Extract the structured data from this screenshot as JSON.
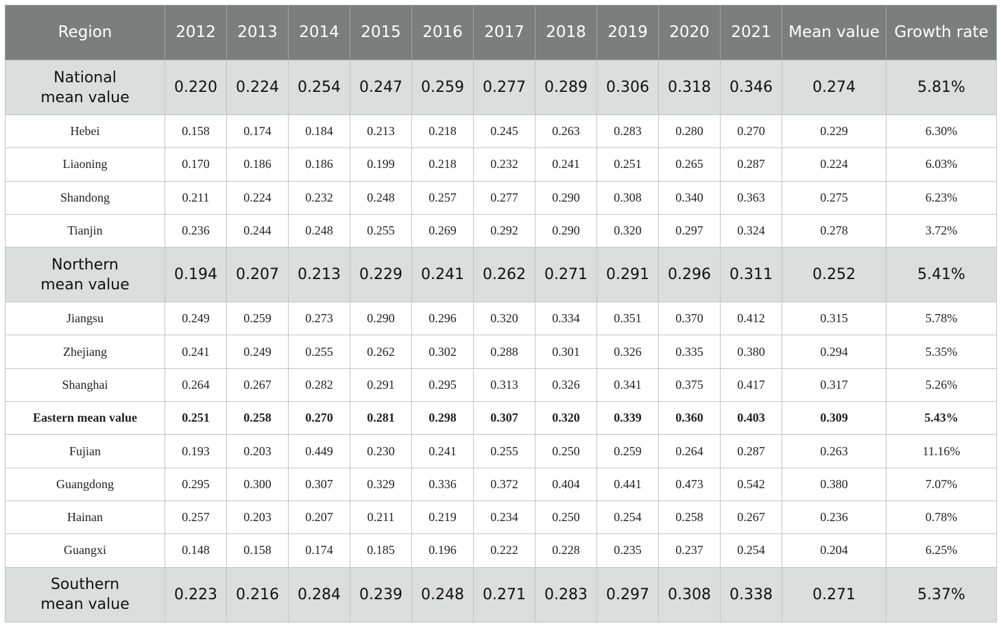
{
  "table": {
    "header": [
      "Region",
      "2012",
      "2013",
      "2014",
      "2015",
      "2016",
      "2017",
      "2018",
      "2019",
      "2020",
      "2021",
      "Mean value",
      "Growth rate"
    ],
    "rows": [
      [
        "National mean value",
        "0.220",
        "0.224",
        "0.254",
        "0.247",
        "0.259",
        "0.277",
        "0.289",
        "0.306",
        "0.318",
        "0.346",
        "0.274",
        "5.81%"
      ],
      [
        "Hebei",
        "0.158",
        "0.174",
        "0.184",
        "0.213",
        "0.218",
        "0.245",
        "0.263",
        "0.283",
        "0.280",
        "0.270",
        "0.229",
        "6.30%"
      ],
      [
        "Liaoning",
        "0.170",
        "0.186",
        "0.186",
        "0.199",
        "0.218",
        "0.232",
        "0.241",
        "0.251",
        "0.265",
        "0.287",
        "0.224",
        "6.03%"
      ],
      [
        "Shandong",
        "0.211",
        "0.224",
        "0.232",
        "0.248",
        "0.257",
        "0.277",
        "0.290",
        "0.308",
        "0.340",
        "0.363",
        "0.275",
        "6.23%"
      ],
      [
        "Tianjin",
        "0.236",
        "0.244",
        "0.248",
        "0.255",
        "0.269",
        "0.292",
        "0.290",
        "0.320",
        "0.297",
        "0.324",
        "0.278",
        "3.72%"
      ],
      [
        "Northern mean value",
        "0.194",
        "0.207",
        "0.213",
        "0.229",
        "0.241",
        "0.262",
        "0.271",
        "0.291",
        "0.296",
        "0.311",
        "0.252",
        "5.41%"
      ],
      [
        "Jiangsu",
        "0.249",
        "0.259",
        "0.273",
        "0.290",
        "0.296",
        "0.320",
        "0.334",
        "0.351",
        "0.370",
        "0.412",
        "0.315",
        "5.78%"
      ],
      [
        "Zhejiang",
        "0.241",
        "0.249",
        "0.255",
        "0.262",
        "0.302",
        "0.288",
        "0.301",
        "0.326",
        "0.335",
        "0.380",
        "0.294",
        "5.35%"
      ],
      [
        "Shanghai",
        "0.264",
        "0.267",
        "0.282",
        "0.291",
        "0.295",
        "0.313",
        "0.326",
        "0.341",
        "0.375",
        "0.417",
        "0.317",
        "5.26%"
      ],
      [
        "Eastern mean value",
        "0.251",
        "0.258",
        "0.270",
        "0.281",
        "0.298",
        "0.307",
        "0.320",
        "0.339",
        "0.360",
        "0.403",
        "0.309",
        "5.43%"
      ],
      [
        "Fujian",
        "0.193",
        "0.203",
        "0.449",
        "0.230",
        "0.241",
        "0.255",
        "0.250",
        "0.259",
        "0.264",
        "0.287",
        "0.263",
        "11.16%"
      ],
      [
        "Guangdong",
        "0.295",
        "0.300",
        "0.307",
        "0.329",
        "0.336",
        "0.372",
        "0.404",
        "0.441",
        "0.473",
        "0.542",
        "0.380",
        "7.07%"
      ],
      [
        "Hainan",
        "0.257",
        "0.203",
        "0.207",
        "0.211",
        "0.219",
        "0.234",
        "0.250",
        "0.254",
        "0.258",
        "0.267",
        "0.236",
        "0.78%"
      ],
      [
        "Guangxi",
        "0.148",
        "0.158",
        "0.174",
        "0.185",
        "0.196",
        "0.222",
        "0.228",
        "0.235",
        "0.237",
        "0.254",
        "0.204",
        "6.25%"
      ],
      [
        "Southern mean value",
        "0.223",
        "0.216",
        "0.284",
        "0.239",
        "0.248",
        "0.271",
        "0.283",
        "0.297",
        "0.308",
        "0.338",
        "0.271",
        "5.37%"
      ]
    ]
  }
}
